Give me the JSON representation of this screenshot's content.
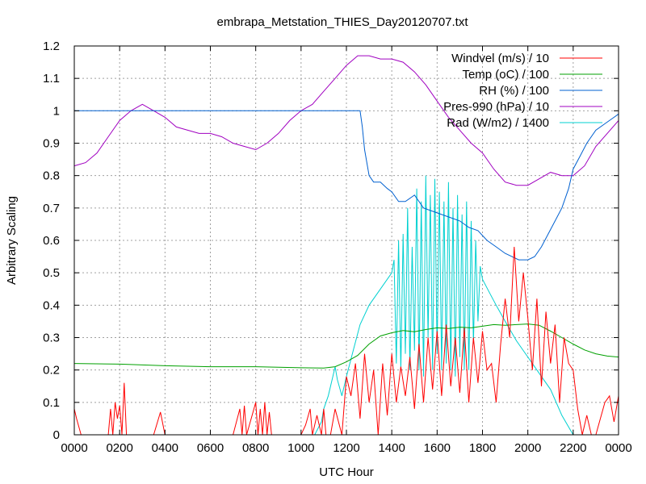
{
  "chart_data": {
    "type": "line",
    "title": "embrapa_Metstation_THIES_Day20120707.txt",
    "xlabel": "UTC Hour",
    "ylabel": "Arbitrary Scaling",
    "xlim": [
      0,
      24
    ],
    "ylim": [
      0,
      1.2
    ],
    "xticks": [
      {
        "value": 0,
        "label": "0000"
      },
      {
        "value": 2,
        "label": "0200"
      },
      {
        "value": 4,
        "label": "0400"
      },
      {
        "value": 6,
        "label": "0600"
      },
      {
        "value": 8,
        "label": "0800"
      },
      {
        "value": 10,
        "label": "1000"
      },
      {
        "value": 12,
        "label": "1200"
      },
      {
        "value": 14,
        "label": "1400"
      },
      {
        "value": 16,
        "label": "1600"
      },
      {
        "value": 18,
        "label": "1800"
      },
      {
        "value": 20,
        "label": "2000"
      },
      {
        "value": 22,
        "label": "2200"
      },
      {
        "value": 24,
        "label": "0000"
      }
    ],
    "yticks": [
      {
        "value": 0,
        "label": "0"
      },
      {
        "value": 0.1,
        "label": "0.1"
      },
      {
        "value": 0.2,
        "label": "0.2"
      },
      {
        "value": 0.3,
        "label": "0.3"
      },
      {
        "value": 0.4,
        "label": "0.4"
      },
      {
        "value": 0.5,
        "label": "0.5"
      },
      {
        "value": 0.6,
        "label": "0.6"
      },
      {
        "value": 0.7,
        "label": "0.7"
      },
      {
        "value": 0.8,
        "label": "0.8"
      },
      {
        "value": 0.9,
        "label": "0.9"
      },
      {
        "value": 1,
        "label": "1"
      },
      {
        "value": 1.1,
        "label": "1.1"
      },
      {
        "value": 1.2,
        "label": "1.2"
      }
    ],
    "grid": true,
    "legend_position": "top-right",
    "series": [
      {
        "name": "Windvel (m/s) / 10",
        "color": "#ff0000",
        "x": [
          0.0,
          0.1,
          0.3,
          0.5,
          0.8,
          1.0,
          1.2,
          1.3,
          1.4,
          1.5,
          1.6,
          1.7,
          1.8,
          1.9,
          2.0,
          2.1,
          2.2,
          2.3,
          2.4,
          2.6,
          3.0,
          3.2,
          3.3,
          3.5,
          3.8,
          4.0,
          4.3,
          4.6,
          5.0,
          5.5,
          6.0,
          6.5,
          7.0,
          7.3,
          7.4,
          7.5,
          7.6,
          7.8,
          8.0,
          8.1,
          8.2,
          8.3,
          8.4,
          8.5,
          8.6,
          8.7,
          9.0,
          9.5,
          10.0,
          10.2,
          10.4,
          10.5,
          10.7,
          10.9,
          11.0,
          11.1,
          11.2,
          11.3,
          11.5,
          11.8,
          12.0,
          12.2,
          12.4,
          12.6,
          12.8,
          13.0,
          13.2,
          13.4,
          13.6,
          13.8,
          14.0,
          14.2,
          14.4,
          14.6,
          14.8,
          15.0,
          15.2,
          15.4,
          15.6,
          15.8,
          16.0,
          16.2,
          16.4,
          16.6,
          16.8,
          17.0,
          17.2,
          17.4,
          17.6,
          17.8,
          18.0,
          18.2,
          18.4,
          18.6,
          18.8,
          19.0,
          19.2,
          19.4,
          19.6,
          19.8,
          20.0,
          20.2,
          20.4,
          20.6,
          20.8,
          21.0,
          21.2,
          21.4,
          21.6,
          21.8,
          22.0,
          22.2,
          22.4,
          22.6,
          22.8,
          23.0,
          23.2,
          23.4,
          23.6,
          23.8,
          24.0
        ],
        "y": [
          0.08,
          0.05,
          0.0,
          0.0,
          0.0,
          0.0,
          0.0,
          0.0,
          0.0,
          0.0,
          0.08,
          0.0,
          0.1,
          0.05,
          0.09,
          0.0,
          0.16,
          0.0,
          0.0,
          0.0,
          0.0,
          0.0,
          0.0,
          0.0,
          0.07,
          0.0,
          0.0,
          0.0,
          0.0,
          0.0,
          0.0,
          0.0,
          0.0,
          0.08,
          0.0,
          0.09,
          0.0,
          0.05,
          0.1,
          0.0,
          0.08,
          0.0,
          0.1,
          0.0,
          0.07,
          0.0,
          0.0,
          0.0,
          0.0,
          0.03,
          0.08,
          0.0,
          0.06,
          0.0,
          0.08,
          0.0,
          0.0,
          0.0,
          0.08,
          0.0,
          0.18,
          0.12,
          0.22,
          0.05,
          0.25,
          0.1,
          0.2,
          0.0,
          0.22,
          0.06,
          0.25,
          0.1,
          0.21,
          0.12,
          0.24,
          0.08,
          0.28,
          0.1,
          0.3,
          0.14,
          0.32,
          0.12,
          0.34,
          0.15,
          0.3,
          0.13,
          0.33,
          0.1,
          0.3,
          0.16,
          0.32,
          0.2,
          0.22,
          0.1,
          0.28,
          0.42,
          0.3,
          0.58,
          0.35,
          0.5,
          0.36,
          0.2,
          0.42,
          0.15,
          0.38,
          0.22,
          0.34,
          0.1,
          0.3,
          0.22,
          0.2,
          0.08,
          0.0,
          0.06,
          0.0,
          0.0,
          0.05,
          0.1,
          0.12,
          0.04,
          0.12
        ]
      },
      {
        "name": "Temp (oC) / 100",
        "color": "#00a000",
        "x": [
          0.0,
          2.0,
          4.0,
          6.0,
          8.0,
          10.0,
          11.0,
          11.5,
          12.0,
          12.5,
          13.0,
          13.5,
          14.0,
          14.5,
          15.0,
          15.5,
          16.0,
          16.5,
          17.0,
          17.5,
          18.0,
          18.5,
          19.0,
          19.5,
          20.0,
          20.5,
          21.0,
          21.5,
          22.0,
          22.5,
          23.0,
          23.5,
          24.0
        ],
        "y": [
          0.22,
          0.218,
          0.213,
          0.21,
          0.21,
          0.207,
          0.206,
          0.21,
          0.225,
          0.245,
          0.28,
          0.305,
          0.315,
          0.322,
          0.318,
          0.325,
          0.33,
          0.328,
          0.332,
          0.33,
          0.335,
          0.34,
          0.338,
          0.34,
          0.342,
          0.338,
          0.32,
          0.3,
          0.28,
          0.262,
          0.25,
          0.243,
          0.24
        ]
      },
      {
        "name": "RH (%) / 100",
        "color": "#0060d0",
        "x": [
          0.0,
          12.6,
          12.7,
          12.8,
          13.0,
          13.2,
          13.5,
          13.8,
          14.0,
          14.3,
          14.6,
          15.0,
          15.4,
          15.8,
          16.2,
          16.6,
          17.0,
          17.4,
          17.8,
          18.2,
          18.6,
          19.0,
          19.3,
          19.6,
          20.0,
          20.3,
          20.6,
          20.9,
          21.2,
          21.5,
          21.8,
          22.0,
          22.3,
          22.6,
          23.0,
          23.4,
          23.8,
          24.0
        ],
        "y": [
          1.0,
          1.0,
          0.95,
          0.88,
          0.8,
          0.78,
          0.78,
          0.76,
          0.75,
          0.72,
          0.72,
          0.74,
          0.7,
          0.69,
          0.68,
          0.67,
          0.66,
          0.64,
          0.63,
          0.6,
          0.58,
          0.56,
          0.55,
          0.54,
          0.54,
          0.55,
          0.58,
          0.62,
          0.66,
          0.7,
          0.76,
          0.82,
          0.86,
          0.9,
          0.94,
          0.96,
          0.98,
          0.99
        ]
      },
      {
        "name": "Pres-990 (hPa) / 10",
        "color": "#a000c0",
        "x": [
          0.0,
          0.5,
          1.0,
          1.5,
          2.0,
          2.5,
          3.0,
          3.5,
          4.0,
          4.5,
          5.0,
          5.5,
          6.0,
          6.5,
          7.0,
          7.5,
          8.0,
          8.5,
          9.0,
          9.5,
          10.0,
          10.5,
          11.0,
          11.5,
          12.0,
          12.5,
          13.0,
          13.5,
          14.0,
          14.5,
          15.0,
          15.5,
          16.0,
          16.5,
          17.0,
          17.5,
          18.0,
          18.5,
          19.0,
          19.5,
          20.0,
          20.5,
          21.0,
          21.5,
          22.0,
          22.5,
          23.0,
          23.5,
          24.0
        ],
        "y": [
          0.83,
          0.84,
          0.87,
          0.92,
          0.97,
          1.0,
          1.02,
          1.0,
          0.98,
          0.95,
          0.94,
          0.93,
          0.93,
          0.92,
          0.9,
          0.89,
          0.88,
          0.9,
          0.93,
          0.97,
          1.0,
          1.02,
          1.06,
          1.1,
          1.14,
          1.17,
          1.17,
          1.16,
          1.16,
          1.15,
          1.12,
          1.08,
          1.03,
          0.98,
          0.94,
          0.9,
          0.87,
          0.82,
          0.78,
          0.77,
          0.77,
          0.79,
          0.81,
          0.8,
          0.8,
          0.83,
          0.89,
          0.93,
          0.97
        ]
      },
      {
        "name": "Rad (W/m2) / 1400",
        "color": "#00d0d0",
        "x": [
          0.0,
          10.0,
          10.2,
          10.6,
          10.9,
          11.0,
          11.2,
          11.4,
          11.5,
          11.6,
          11.8,
          12.0,
          12.3,
          12.6,
          13.0,
          13.5,
          14.0,
          14.1,
          14.2,
          14.3,
          14.4,
          14.5,
          14.6,
          14.7,
          14.8,
          14.9,
          15.0,
          15.1,
          15.2,
          15.3,
          15.4,
          15.5,
          15.6,
          15.7,
          15.8,
          15.9,
          16.0,
          16.1,
          16.2,
          16.3,
          16.4,
          16.5,
          16.6,
          16.7,
          16.8,
          16.9,
          17.0,
          17.1,
          17.2,
          17.3,
          17.4,
          17.5,
          17.6,
          17.7,
          17.8,
          17.9,
          18.0,
          18.3,
          18.6,
          19.0,
          19.5,
          20.0,
          20.5,
          21.0,
          21.5,
          22.0,
          22.5,
          24.0
        ],
        "y": [
          0.0,
          0.0,
          0.0,
          0.0,
          0.04,
          0.08,
          0.12,
          0.18,
          0.21,
          0.17,
          0.12,
          0.18,
          0.26,
          0.34,
          0.4,
          0.45,
          0.5,
          0.54,
          0.22,
          0.6,
          0.2,
          0.62,
          0.25,
          0.7,
          0.2,
          0.58,
          0.26,
          0.76,
          0.2,
          0.72,
          0.18,
          0.8,
          0.3,
          0.74,
          0.2,
          0.79,
          0.25,
          0.75,
          0.2,
          0.72,
          0.22,
          0.78,
          0.2,
          0.7,
          0.18,
          0.74,
          0.24,
          0.68,
          0.2,
          0.72,
          0.2,
          0.66,
          0.28,
          0.6,
          0.35,
          0.52,
          0.48,
          0.44,
          0.4,
          0.35,
          0.29,
          0.24,
          0.19,
          0.14,
          0.06,
          0.0,
          0.0,
          0.0
        ]
      }
    ]
  }
}
